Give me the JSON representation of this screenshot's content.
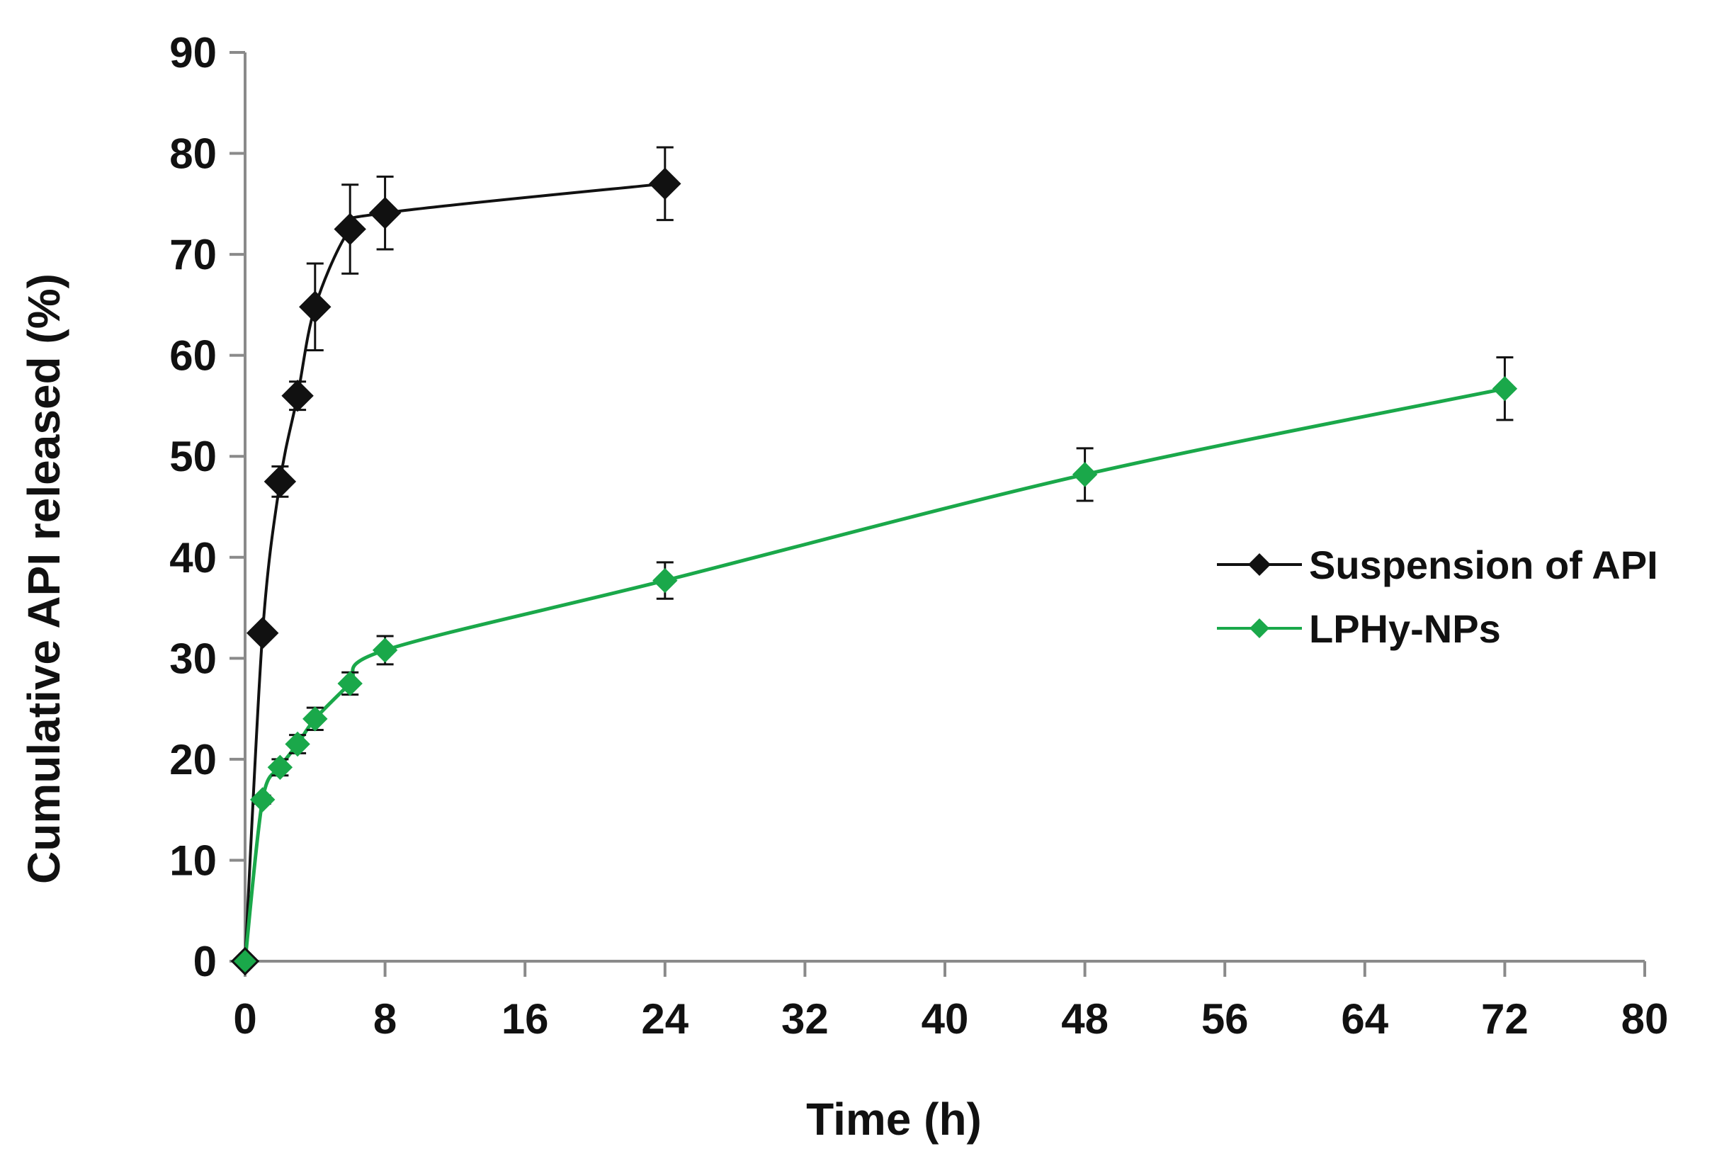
{
  "chart_data": {
    "type": "line",
    "title": "",
    "xlabel": "Time (h)",
    "ylabel": "Cumulative API released (%)",
    "xlim": [
      0,
      80
    ],
    "ylim": [
      0,
      90
    ],
    "xticks": [
      0,
      8,
      16,
      24,
      32,
      40,
      48,
      56,
      64,
      72,
      80
    ],
    "yticks": [
      0,
      10,
      20,
      30,
      40,
      50,
      60,
      70,
      80,
      90
    ],
    "grid": false,
    "legend_position": "right",
    "series": [
      {
        "name": "Suspension of API",
        "color": "#111111",
        "marker": "diamond",
        "x": [
          0,
          1,
          2,
          3,
          4,
          6,
          8,
          24
        ],
        "y": [
          0,
          32.5,
          47.5,
          56,
          64.8,
          72.5,
          74.1,
          77
        ],
        "error": [
          0,
          0.5,
          1.5,
          1.4,
          4.3,
          4.4,
          3.6,
          3.6
        ]
      },
      {
        "name": "LPHy-NPs",
        "color": "#1aa84a",
        "marker": "diamond",
        "x": [
          0,
          1,
          2,
          3,
          4,
          6,
          8,
          24,
          48,
          72
        ],
        "y": [
          0,
          16,
          19.2,
          21.5,
          24,
          27.5,
          30.8,
          37.7,
          48.2,
          56.7
        ],
        "error": [
          0,
          0.4,
          0.8,
          0.9,
          1.1,
          1.1,
          1.4,
          1.8,
          2.6,
          3.1
        ]
      }
    ]
  }
}
